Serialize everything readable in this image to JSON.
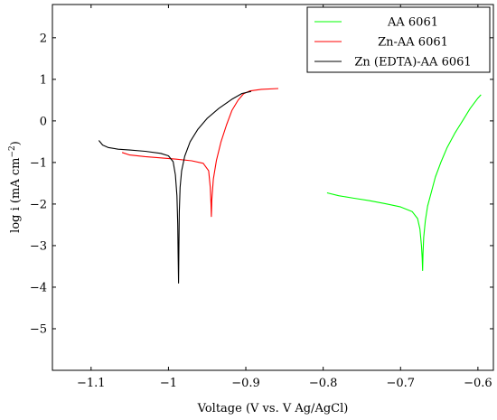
{
  "chart_data": {
    "type": "line",
    "title": "",
    "xlabel": "Voltage (V vs. V Ag/AgCl)",
    "ylabel_prefix": "log i (mA cm",
    "ylabel_sup": "−2",
    "ylabel_suffix": ")",
    "xlim": [
      -1.15,
      -0.58
    ],
    "ylim": [
      -6,
      2.8
    ],
    "xticks": [
      -1.1,
      -1.0,
      -0.9,
      -0.8,
      -0.7,
      -0.6
    ],
    "xtick_labels": [
      "−1.1",
      "−1",
      "−0.9",
      "−0.8",
      "−0.7",
      "−0.6"
    ],
    "yticks": [
      -5,
      -4,
      -3,
      -2,
      -1,
      0,
      1,
      2
    ],
    "ytick_labels": [
      "−5",
      "−4",
      "−3",
      "−2",
      "−1",
      "0",
      "1",
      "2"
    ],
    "grid": false,
    "legend_position": "top-right",
    "series": [
      {
        "name": "AA 6061",
        "color": "#00ff00",
        "points": [
          [
            -0.795,
            -1.73
          ],
          [
            -0.78,
            -1.8
          ],
          [
            -0.76,
            -1.86
          ],
          [
            -0.74,
            -1.92
          ],
          [
            -0.72,
            -1.99
          ],
          [
            -0.7,
            -2.07
          ],
          [
            -0.685,
            -2.18
          ],
          [
            -0.678,
            -2.35
          ],
          [
            -0.675,
            -2.6
          ],
          [
            -0.673,
            -3.0
          ],
          [
            -0.672,
            -3.3
          ],
          [
            -0.6715,
            -3.6
          ],
          [
            -0.671,
            -3.2
          ],
          [
            -0.67,
            -2.8
          ],
          [
            -0.668,
            -2.4
          ],
          [
            -0.665,
            -2.05
          ],
          [
            -0.66,
            -1.7
          ],
          [
            -0.655,
            -1.35
          ],
          [
            -0.648,
            -1.0
          ],
          [
            -0.64,
            -0.65
          ],
          [
            -0.63,
            -0.3
          ],
          [
            -0.62,
            0.0
          ],
          [
            -0.61,
            0.3
          ],
          [
            -0.6,
            0.55
          ],
          [
            -0.596,
            0.63
          ]
        ]
      },
      {
        "name": "Zn-AA 6061",
        "color": "#ff0000",
        "points": [
          [
            -1.06,
            -0.76
          ],
          [
            -1.05,
            -0.82
          ],
          [
            -1.03,
            -0.86
          ],
          [
            -1.01,
            -0.89
          ],
          [
            -0.99,
            -0.92
          ],
          [
            -0.97,
            -0.96
          ],
          [
            -0.955,
            -1.02
          ],
          [
            -0.948,
            -1.2
          ],
          [
            -0.946,
            -1.6
          ],
          [
            -0.945,
            -2.0
          ],
          [
            -0.9445,
            -2.3
          ],
          [
            -0.944,
            -1.9
          ],
          [
            -0.942,
            -1.4
          ],
          [
            -0.938,
            -0.95
          ],
          [
            -0.932,
            -0.5
          ],
          [
            -0.925,
            -0.1
          ],
          [
            -0.918,
            0.25
          ],
          [
            -0.91,
            0.5
          ],
          [
            -0.903,
            0.65
          ],
          [
            -0.895,
            0.72
          ],
          [
            -0.88,
            0.76
          ],
          [
            -0.858,
            0.78
          ]
        ]
      },
      {
        "name": "Zn (EDTA)-AA 6061",
        "color": "#000000",
        "points": [
          [
            -1.09,
            -0.47
          ],
          [
            -1.085,
            -0.58
          ],
          [
            -1.078,
            -0.64
          ],
          [
            -1.065,
            -0.68
          ],
          [
            -1.05,
            -0.7
          ],
          [
            -1.03,
            -0.73
          ],
          [
            -1.01,
            -0.78
          ],
          [
            -1.0,
            -0.84
          ],
          [
            -0.994,
            -0.98
          ],
          [
            -0.991,
            -1.3
          ],
          [
            -0.989,
            -1.8
          ],
          [
            -0.988,
            -2.5
          ],
          [
            -0.9875,
            -3.2
          ],
          [
            -0.987,
            -3.9
          ],
          [
            -0.9865,
            -3.0
          ],
          [
            -0.986,
            -2.2
          ],
          [
            -0.985,
            -1.6
          ],
          [
            -0.983,
            -1.2
          ],
          [
            -0.979,
            -0.85
          ],
          [
            -0.972,
            -0.5
          ],
          [
            -0.962,
            -0.2
          ],
          [
            -0.95,
            0.06
          ],
          [
            -0.935,
            0.3
          ],
          [
            -0.918,
            0.52
          ],
          [
            -0.905,
            0.66
          ],
          [
            -0.893,
            0.71
          ]
        ]
      }
    ]
  }
}
